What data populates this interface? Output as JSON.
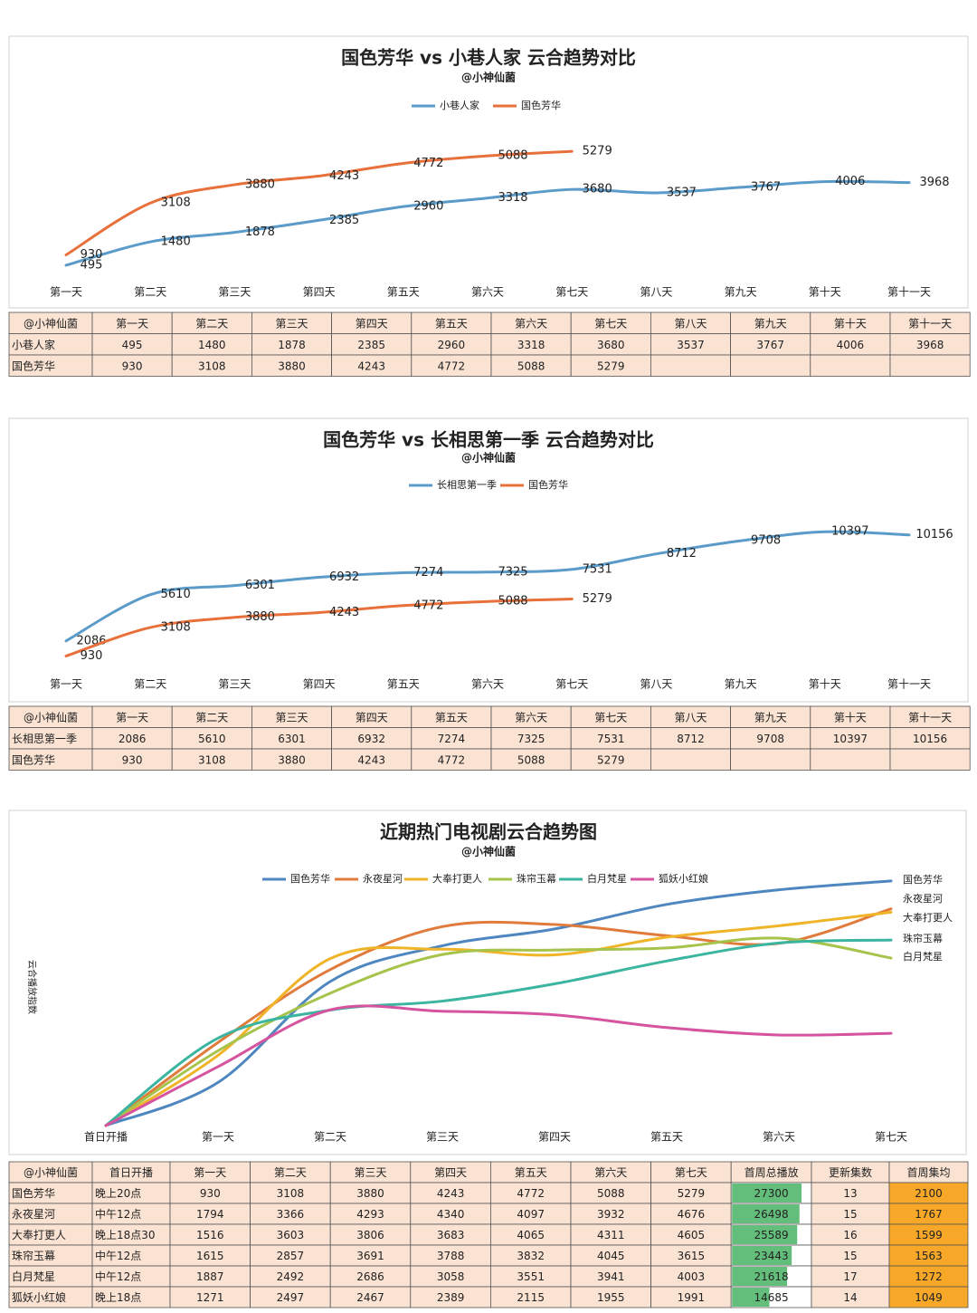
{
  "chart_data": [
    {
      "type": "line",
      "title": "国色芳华 vs 小巷人家 云合趋势对比",
      "subtitle": "@小神仙菌",
      "categories": [
        "第一天",
        "第二天",
        "第三天",
        "第四天",
        "第五天",
        "第六天",
        "第七天",
        "第八天",
        "第九天",
        "第十天",
        "第十一天"
      ],
      "series": [
        {
          "name": "小巷人家",
          "color": "#5a9bc9",
          "values": [
            495,
            1480,
            1878,
            2385,
            2960,
            3318,
            3680,
            3537,
            3767,
            4006,
            3968
          ]
        },
        {
          "name": "国色芳华",
          "color": "#e8703a",
          "values": [
            930,
            3108,
            3880,
            4243,
            4772,
            5088,
            5279,
            null,
            null,
            null,
            null
          ]
        }
      ],
      "ylim": [
        0,
        6500
      ],
      "legend": "top"
    },
    {
      "type": "line",
      "title": "国色芳华 vs 长相思第一季 云合趋势对比",
      "subtitle": "@小神仙菌",
      "categories": [
        "第一天",
        "第二天",
        "第三天",
        "第四天",
        "第五天",
        "第六天",
        "第七天",
        "第八天",
        "第九天",
        "第十天",
        "第十一天"
      ],
      "series": [
        {
          "name": "长相思第一季",
          "color": "#5a9bc9",
          "values": [
            2086,
            5610,
            6301,
            6932,
            7274,
            7325,
            7531,
            8712,
            9708,
            10397,
            10156
          ]
        },
        {
          "name": "国色芳华",
          "color": "#e8703a",
          "values": [
            930,
            3108,
            3880,
            4243,
            4772,
            5088,
            5279,
            null,
            null,
            null,
            null
          ]
        }
      ],
      "ylim": [
        0,
        12000
      ],
      "legend": "top"
    },
    {
      "type": "line",
      "title": "近期热门电视剧云合趋势图",
      "subtitle": "@小神仙菌",
      "ylabel": "云合播放指数",
      "categories": [
        "首日开播",
        "第一天",
        "第二天",
        "第三天",
        "第四天",
        "第五天",
        "第六天",
        "第七天"
      ],
      "series": [
        {
          "name": "国色芳华",
          "color": "#4e87c0",
          "values": [
            0,
            930,
            3108,
            3880,
            4243,
            4772,
            5088,
            5279
          ]
        },
        {
          "name": "永夜星河",
          "color": "#e07b3c",
          "values": [
            0,
            1794,
            3366,
            4293,
            4340,
            4097,
            3932,
            4676
          ]
        },
        {
          "name": "大奉打更人",
          "color": "#f0b429",
          "values": [
            0,
            1516,
            3603,
            3806,
            3683,
            4065,
            4311,
            4605
          ]
        },
        {
          "name": "珠帘玉幕",
          "color": "#a6c34c",
          "values": [
            0,
            1615,
            2857,
            3691,
            3788,
            3832,
            4045,
            3615
          ]
        },
        {
          "name": "白月梵星",
          "color": "#3bb5a0",
          "values": [
            0,
            1887,
            2492,
            2686,
            3058,
            3551,
            3941,
            4003
          ]
        },
        {
          "name": "狐妖小红娘",
          "color": "#d6549f",
          "values": [
            0,
            1271,
            2497,
            2467,
            2389,
            2115,
            1955,
            1991
          ]
        }
      ],
      "ylim": [
        0,
        6000
      ],
      "legend": "top"
    }
  ],
  "tables": [
    {
      "corner": "@小神仙菌"
    },
    {
      "corner": "@小神仙菌"
    },
    {
      "corner": "@小神仙菌",
      "extra_headers": [
        "首周总播放",
        "更新集数",
        "首周集均"
      ],
      "rows": [
        {
          "premiere": "晚上20点",
          "total": 27300,
          "episodes": 13,
          "average": 2100
        },
        {
          "premiere": "中午12点",
          "total": 26498,
          "episodes": 15,
          "average": 1767
        },
        {
          "premiere": "晚上18点30",
          "total": 25589,
          "episodes": 16,
          "average": 1599
        },
        {
          "premiere": "中午12点",
          "total": 23443,
          "episodes": 15,
          "average": 1563
        },
        {
          "premiere": "中午12点",
          "total": 21618,
          "episodes": 17,
          "average": 1272
        },
        {
          "premiere": "晚上18点",
          "total": 14685,
          "episodes": 14,
          "average": 1049
        }
      ]
    }
  ]
}
